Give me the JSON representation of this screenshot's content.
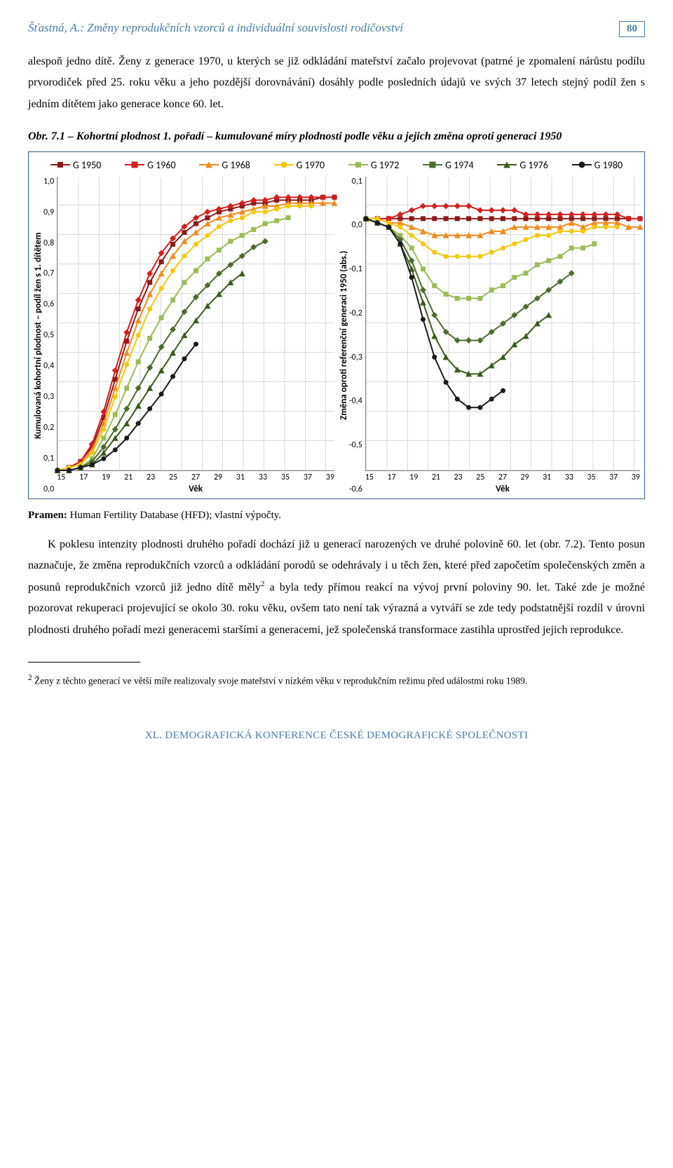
{
  "header": {
    "running_title": "Šťastná, A.: Změny reprodukčních vzorců a individuální souvislosti rodičovství",
    "page_number": "80"
  },
  "para1": "alespoň jedno dítě. Ženy z generace 1970, u kterých se již odkládání mateřství začalo projevovat (patrné je zpomalení nárůstu podílu prvorodiček před 25. roku věku a jeho pozdější dorovnávání) dosáhly podle posledních údajů ve svých 37 letech stejný podíl žen s jedním dítětem jako generace konce 60. let.",
  "figure": {
    "caption": "Obr. 7.1 – Kohortní plodnost 1. pořadí – kumulované míry plodnosti podle věku a jejich změna oproti generaci 1950",
    "legend": [
      {
        "label": "G 1950",
        "color": "#8b1a1a",
        "marker": "square"
      },
      {
        "label": "G 1960",
        "color": "#d21f1f",
        "marker": "diamond"
      },
      {
        "label": "G 1968",
        "color": "#f08b1e",
        "marker": "triangle"
      },
      {
        "label": "G 1970",
        "color": "#f2c80f",
        "marker": "circle"
      },
      {
        "label": "G 1972",
        "color": "#9bbb59",
        "marker": "square"
      },
      {
        "label": "G 1974",
        "color": "#4c6b2f",
        "marker": "diamond"
      },
      {
        "label": "G 1976",
        "color": "#3a5a1f",
        "marker": "triangle"
      },
      {
        "label": "G 1980",
        "color": "#1a1a1a",
        "marker": "circle"
      }
    ],
    "left": {
      "type": "line",
      "y_label": "Kumulovaná kohortní plodnost – podíl žen s 1. dítětem",
      "x_label": "Věk",
      "x_ticks": [
        15,
        17,
        19,
        21,
        23,
        25,
        27,
        29,
        31,
        33,
        35,
        37,
        39
      ],
      "y_ticks": [
        "1,0",
        "0,9",
        "0,8",
        "0,7",
        "0,6",
        "0,5",
        "0,4",
        "0,3",
        "0,2",
        "0,1",
        "0,0"
      ],
      "ylim": [
        0.0,
        1.0
      ],
      "x_values": [
        15,
        16,
        17,
        18,
        19,
        20,
        21,
        22,
        23,
        24,
        25,
        26,
        27,
        28,
        29,
        30,
        31,
        32,
        33,
        34,
        35,
        36,
        37,
        38,
        39
      ],
      "series": {
        "G 1950": [
          0.0,
          0.01,
          0.03,
          0.08,
          0.18,
          0.31,
          0.44,
          0.55,
          0.64,
          0.71,
          0.77,
          0.81,
          0.84,
          0.86,
          0.88,
          0.89,
          0.9,
          0.91,
          0.91,
          0.92,
          0.92,
          0.92,
          0.92,
          0.93,
          0.93
        ],
        "G 1960": [
          0.0,
          0.01,
          0.03,
          0.09,
          0.2,
          0.34,
          0.47,
          0.58,
          0.67,
          0.74,
          0.79,
          0.83,
          0.86,
          0.88,
          0.89,
          0.9,
          0.91,
          0.92,
          0.92,
          0.93,
          0.93,
          0.93,
          0.93,
          0.93,
          0.93
        ],
        "G 1968": [
          0.0,
          0.01,
          0.02,
          0.07,
          0.16,
          0.28,
          0.4,
          0.51,
          0.6,
          0.67,
          0.73,
          0.78,
          0.81,
          0.84,
          0.86,
          0.87,
          0.88,
          0.89,
          0.9,
          0.9,
          0.91,
          0.91,
          0.91,
          0.91,
          0.91
        ],
        "G 1970": [
          0.0,
          0.01,
          0.02,
          0.06,
          0.14,
          0.25,
          0.36,
          0.46,
          0.55,
          0.62,
          0.68,
          0.73,
          0.77,
          0.8,
          0.83,
          0.85,
          0.86,
          0.88,
          0.88,
          0.89,
          0.9,
          0.9,
          0.9
        ],
        "G 1972": [
          0.0,
          0.0,
          0.01,
          0.04,
          0.11,
          0.19,
          0.28,
          0.37,
          0.45,
          0.52,
          0.58,
          0.64,
          0.68,
          0.72,
          0.75,
          0.78,
          0.8,
          0.82,
          0.84,
          0.85,
          0.86
        ],
        "G 1974": [
          0.0,
          0.0,
          0.01,
          0.03,
          0.08,
          0.14,
          0.21,
          0.28,
          0.35,
          0.42,
          0.48,
          0.54,
          0.59,
          0.63,
          0.67,
          0.7,
          0.73,
          0.76,
          0.78
        ],
        "G 1976": [
          0.0,
          0.0,
          0.01,
          0.02,
          0.06,
          0.11,
          0.16,
          0.22,
          0.28,
          0.34,
          0.4,
          0.46,
          0.51,
          0.56,
          0.6,
          0.64,
          0.67
        ],
        "G 1980": [
          0.0,
          0.0,
          0.01,
          0.02,
          0.04,
          0.07,
          0.11,
          0.16,
          0.21,
          0.26,
          0.32,
          0.38,
          0.43
        ]
      },
      "grid_color": "#d9d9d9",
      "background_color": "#ffffff"
    },
    "right": {
      "type": "line",
      "y_label": "Změna oproti referenční generaci 1950 (abs.)",
      "x_label": "Věk",
      "x_ticks": [
        15,
        17,
        19,
        21,
        23,
        25,
        27,
        29,
        31,
        33,
        35,
        37,
        39
      ],
      "y_ticks": [
        "0,1",
        "0,0",
        "-0,1",
        "-0,2",
        "-0,3",
        "-0,4",
        "-0,5",
        "-0,6"
      ],
      "ylim": [
        -0.6,
        0.1
      ],
      "x_values": [
        15,
        16,
        17,
        18,
        19,
        20,
        21,
        22,
        23,
        24,
        25,
        26,
        27,
        28,
        29,
        30,
        31,
        32,
        33,
        34,
        35,
        36,
        37,
        38,
        39
      ],
      "series": {
        "G 1950": [
          0,
          0,
          0,
          0,
          0,
          0,
          0,
          0,
          0,
          0,
          0,
          0,
          0,
          0,
          0,
          0,
          0,
          0,
          0,
          0,
          0,
          0,
          0,
          0,
          0
        ],
        "G 1960": [
          0.0,
          0.0,
          0.0,
          0.01,
          0.02,
          0.03,
          0.03,
          0.03,
          0.03,
          0.03,
          0.02,
          0.02,
          0.02,
          0.02,
          0.01,
          0.01,
          0.01,
          0.01,
          0.01,
          0.01,
          0.01,
          0.01,
          0.01,
          0.0,
          0.0
        ],
        "G 1968": [
          0.0,
          0.0,
          -0.01,
          -0.01,
          -0.02,
          -0.03,
          -0.04,
          -0.04,
          -0.04,
          -0.04,
          -0.04,
          -0.03,
          -0.03,
          -0.02,
          -0.02,
          -0.02,
          -0.02,
          -0.02,
          -0.01,
          -0.02,
          -0.01,
          -0.01,
          -0.01,
          -0.02,
          -0.02
        ],
        "G 1970": [
          0.0,
          0.0,
          -0.01,
          -0.02,
          -0.04,
          -0.06,
          -0.08,
          -0.09,
          -0.09,
          -0.09,
          -0.09,
          -0.08,
          -0.07,
          -0.06,
          -0.05,
          -0.04,
          -0.04,
          -0.03,
          -0.03,
          -0.03,
          -0.02,
          -0.02,
          -0.02
        ],
        "G 1972": [
          0.0,
          -0.01,
          -0.02,
          -0.04,
          -0.07,
          -0.12,
          -0.16,
          -0.18,
          -0.19,
          -0.19,
          -0.19,
          -0.17,
          -0.16,
          -0.14,
          -0.13,
          -0.11,
          -0.1,
          -0.09,
          -0.07,
          -0.07,
          -0.06
        ],
        "G 1974": [
          0.0,
          -0.01,
          -0.02,
          -0.05,
          -0.1,
          -0.17,
          -0.23,
          -0.27,
          -0.29,
          -0.29,
          -0.29,
          -0.27,
          -0.25,
          -0.23,
          -0.21,
          -0.19,
          -0.17,
          -0.15,
          -0.13
        ],
        "G 1976": [
          0.0,
          -0.01,
          -0.02,
          -0.06,
          -0.12,
          -0.2,
          -0.28,
          -0.33,
          -0.36,
          -0.37,
          -0.37,
          -0.35,
          -0.33,
          -0.3,
          -0.28,
          -0.25,
          -0.23
        ],
        "G 1980": [
          0.0,
          -0.01,
          -0.02,
          -0.06,
          -0.14,
          -0.24,
          -0.33,
          -0.39,
          -0.43,
          -0.45,
          -0.45,
          -0.43,
          -0.41
        ]
      },
      "grid_color": "#d9d9d9",
      "background_color": "#ffffff"
    }
  },
  "source_label": "Pramen:",
  "source_text": " Human Fertility Database (HFD); vlastní výpočty.",
  "para2_pre": "K poklesu intenzity plodnosti druhého pořadí dochází již u generací narozených ve druhé polovině 60. let (obr. 7.2). Tento posun naznačuje, že změna reprodukčních vzorců a odkládání porodů se odehrávaly i u těch žen, které před započetím společenských změn a posunů reprodukčních vzorců již jedno dítě měly",
  "para2_post": " a byla tedy přímou reakcí na vývoj první poloviny 90. let. Také zde je možné pozorovat rekuperaci projevující se okolo 30. roku věku, ovšem tato není tak výrazná a vytváří se zde tedy podstatnější rozdíl v úrovni plodnosti druhého pořadí mezi generacemi staršími a generacemi, jež společenská transformace zastihla uprostřed jejich reprodukce.",
  "footnote_marker": "2",
  "footnote_text": " Ženy z těchto generací ve větší míře realizovaly svoje mateřství v nízkém věku v reprodukčním režimu před událostmi roku 1989.",
  "footer": "XL. DEMOGRAFICKÁ KONFERENCE ČESKÉ DEMOGRAFICKÉ SPOLEČNOSTI"
}
